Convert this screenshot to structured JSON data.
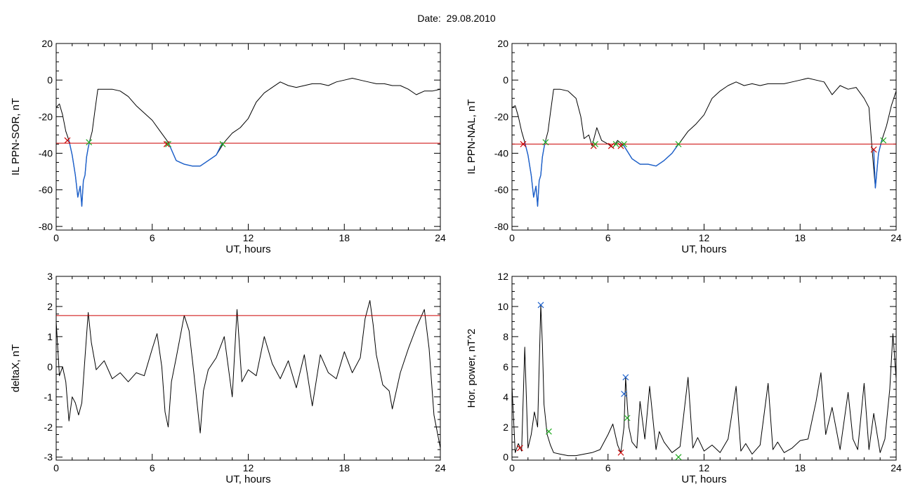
{
  "page": {
    "title": "Date:  29.08.2010"
  },
  "chart_data": [
    {
      "type": "line",
      "panel": "top-left",
      "xlabel": "UT, hours",
      "ylabel": "IL PPN-SOR, nT",
      "xlim": [
        0,
        24
      ],
      "ylim": [
        -82,
        20
      ],
      "xticks": [
        0,
        6,
        12,
        18,
        24
      ],
      "yticks": [
        -80,
        -60,
        -40,
        -20,
        0,
        20
      ],
      "threshold": {
        "value": -34.5,
        "color": "#cc0000"
      },
      "series": [
        {
          "color": "#000000",
          "x": [
            0,
            0.2,
            0.4,
            0.6,
            0.8,
            1.0,
            1.2,
            1.35,
            1.5,
            1.6,
            1.7,
            1.8,
            1.9,
            2.0,
            2.1,
            2.25,
            2.4,
            2.6,
            3.0,
            3.5,
            4.0,
            4.5,
            5.0,
            5.5,
            6.0,
            6.5,
            7.0,
            7.5,
            8.0,
            8.5,
            9.0,
            9.5,
            10.0,
            10.5,
            11.0,
            11.5,
            12.0,
            12.5,
            13.0,
            13.5,
            14.0,
            14.5,
            15.0,
            15.5,
            16.0,
            16.5,
            17.0,
            17.5,
            18.0,
            18.5,
            19.0,
            19.5,
            20.0,
            20.5,
            21.0,
            21.5,
            22.0,
            22.5,
            23.0,
            23.5,
            24.0
          ],
          "y": [
            -15,
            -13,
            -19,
            -28,
            -33,
            -41,
            -52,
            -64,
            -58,
            -69,
            -55,
            -52,
            -42,
            -37,
            -33,
            -28,
            -18,
            -5,
            -5,
            -5,
            -6,
            -9,
            -14,
            -18,
            -22,
            -28,
            -34,
            -44,
            -46,
            -47,
            -47,
            -44,
            -41,
            -34,
            -29,
            -26,
            -21,
            -12,
            -7,
            -4,
            -1,
            -3,
            -4,
            -3,
            -2,
            -2,
            -3,
            -1,
            0,
            1,
            0,
            -1,
            -2,
            -2,
            -3,
            -3,
            -5,
            -8,
            -6,
            -6,
            -5
          ]
        },
        {
          "color": "#1a5fcc",
          "x": [
            0.8,
            1.0,
            1.2,
            1.35,
            1.5,
            1.6,
            1.7,
            1.8,
            1.9,
            2.0,
            2.1
          ],
          "y": [
            -33,
            -41,
            -52,
            -64,
            -58,
            -69,
            -55,
            -52,
            -42,
            -37,
            -33
          ]
        },
        {
          "color": "#1a5fcc",
          "x": [
            7.0,
            7.5,
            8.0,
            8.5,
            9.0,
            9.5,
            10.0,
            10.4
          ],
          "y": [
            -34,
            -44,
            -46,
            -47,
            -47,
            -44,
            -41,
            -34
          ]
        }
      ],
      "markers": [
        {
          "x": 0.7,
          "y": -33,
          "color": "#cc0000"
        },
        {
          "x": 2.05,
          "y": -34,
          "color": "#22aa22"
        },
        {
          "x": 6.9,
          "y": -35,
          "color": "#cc0000"
        },
        {
          "x": 7.0,
          "y": -35,
          "color": "#22aa22"
        },
        {
          "x": 10.4,
          "y": -35,
          "color": "#22aa22"
        }
      ]
    },
    {
      "type": "line",
      "panel": "top-right",
      "xlabel": "UT, hours",
      "ylabel": "IL PPN-NAL, nT",
      "xlim": [
        0,
        24
      ],
      "ylim": [
        -82,
        20
      ],
      "xticks": [
        0,
        6,
        12,
        18,
        24
      ],
      "yticks": [
        -80,
        -60,
        -40,
        -20,
        0,
        20
      ],
      "threshold": {
        "value": -35,
        "color": "#cc0000"
      },
      "series": [
        {
          "color": "#000000",
          "x": [
            0,
            0.2,
            0.4,
            0.6,
            0.8,
            1.0,
            1.2,
            1.35,
            1.5,
            1.6,
            1.7,
            1.8,
            1.9,
            2.0,
            2.1,
            2.25,
            2.4,
            2.6,
            3.0,
            3.5,
            4.0,
            4.3,
            4.5,
            4.8,
            5.0,
            5.3,
            5.6,
            6.0,
            6.3,
            6.6,
            7.0,
            7.5,
            8.0,
            8.5,
            9.0,
            9.5,
            10.0,
            10.5,
            11.0,
            11.5,
            12.0,
            12.5,
            13.0,
            13.5,
            14.0,
            14.5,
            15.0,
            15.5,
            16.0,
            16.5,
            17.0,
            17.5,
            18.0,
            18.5,
            19.0,
            19.5,
            20.0,
            20.5,
            21.0,
            21.5,
            22.0,
            22.3,
            22.5,
            22.7,
            22.9,
            23.1,
            23.4,
            23.7,
            24.0
          ],
          "y": [
            -15,
            -14,
            -20,
            -28,
            -34,
            -41,
            -52,
            -64,
            -58,
            -69,
            -55,
            -52,
            -42,
            -37,
            -33,
            -28,
            -18,
            -5,
            -5,
            -6,
            -10,
            -20,
            -32,
            -30,
            -36,
            -26,
            -33,
            -35,
            -37,
            -33,
            -36,
            -43,
            -46,
            -46,
            -47,
            -44,
            -40,
            -34,
            -28,
            -24,
            -19,
            -10,
            -6,
            -3,
            -1,
            -3,
            -2,
            -3,
            -2,
            -2,
            -2,
            -1,
            0,
            1,
            0,
            -1,
            -8,
            -3,
            -5,
            -4,
            -10,
            -15,
            -38,
            -59,
            -40,
            -33,
            -25,
            -14,
            -6
          ]
        },
        {
          "color": "#1a5fcc",
          "x": [
            0.8,
            1.0,
            1.2,
            1.35,
            1.5,
            1.6,
            1.7,
            1.8,
            1.9,
            2.0,
            2.1
          ],
          "y": [
            -34,
            -41,
            -52,
            -64,
            -58,
            -69,
            -55,
            -52,
            -42,
            -37,
            -33
          ]
        },
        {
          "color": "#1a5fcc",
          "x": [
            6.8,
            7.0,
            7.5,
            8.0,
            8.5,
            9.0,
            9.5,
            10.0,
            10.4
          ],
          "y": [
            -35,
            -36,
            -43,
            -46,
            -46,
            -47,
            -44,
            -40,
            -35
          ]
        },
        {
          "color": "#1a5fcc",
          "x": [
            22.6,
            22.7,
            22.9,
            23.1
          ],
          "y": [
            -38,
            -59,
            -40,
            -33
          ]
        }
      ],
      "markers": [
        {
          "x": 0.7,
          "y": -35,
          "color": "#cc0000"
        },
        {
          "x": 2.1,
          "y": -34,
          "color": "#22aa22"
        },
        {
          "x": 5.1,
          "y": -36,
          "color": "#cc0000"
        },
        {
          "x": 5.2,
          "y": -35,
          "color": "#22aa22"
        },
        {
          "x": 6.2,
          "y": -36,
          "color": "#cc0000"
        },
        {
          "x": 6.5,
          "y": -35,
          "color": "#22aa22"
        },
        {
          "x": 6.8,
          "y": -36,
          "color": "#cc0000"
        },
        {
          "x": 7.0,
          "y": -35,
          "color": "#22aa22"
        },
        {
          "x": 10.4,
          "y": -35,
          "color": "#22aa22"
        },
        {
          "x": 22.6,
          "y": -38,
          "color": "#cc0000"
        },
        {
          "x": 23.2,
          "y": -33,
          "color": "#22aa22"
        }
      ]
    },
    {
      "type": "line",
      "panel": "bottom-left",
      "xlabel": "UT, hours",
      "ylabel": "deltaX, nT",
      "xlim": [
        0,
        24
      ],
      "ylim": [
        -3.1,
        3
      ],
      "xticks": [
        0,
        6,
        12,
        18,
        24
      ],
      "yticks": [
        -3,
        -2,
        -1,
        0,
        1,
        2,
        3
      ],
      "threshold": {
        "value": 1.7,
        "color": "#cc0000"
      },
      "series": [
        {
          "color": "#000000",
          "x": [
            0,
            0.2,
            0.4,
            0.6,
            0.8,
            1.0,
            1.2,
            1.4,
            1.6,
            1.8,
            2.0,
            2.2,
            2.5,
            3.0,
            3.5,
            4.0,
            4.5,
            5.0,
            5.5,
            6.0,
            6.3,
            6.6,
            6.8,
            7.0,
            7.2,
            7.5,
            8.0,
            8.3,
            8.6,
            9.0,
            9.2,
            9.5,
            10.0,
            10.5,
            11.0,
            11.3,
            11.6,
            12.0,
            12.5,
            13.0,
            13.5,
            14.0,
            14.5,
            15.0,
            15.5,
            16.0,
            16.5,
            17.0,
            17.5,
            18.0,
            18.5,
            19.0,
            19.3,
            19.6,
            19.8,
            20.0,
            20.4,
            20.8,
            21.0,
            21.5,
            22.0,
            22.5,
            23.0,
            23.3,
            23.6,
            24.0
          ],
          "y": [
            1.5,
            -0.3,
            0.0,
            -0.5,
            -1.8,
            -1.0,
            -1.2,
            -1.6,
            -1.2,
            0.3,
            1.8,
            0.8,
            -0.1,
            0.2,
            -0.4,
            -0.2,
            -0.5,
            -0.2,
            -0.3,
            0.6,
            1.1,
            0.0,
            -1.5,
            -2.0,
            -0.5,
            0.3,
            1.7,
            1.2,
            -0.2,
            -2.2,
            -0.8,
            -0.1,
            0.3,
            1.0,
            -1.0,
            1.9,
            -0.5,
            -0.1,
            -0.3,
            1.0,
            0.1,
            -0.4,
            0.2,
            -0.7,
            0.4,
            -1.3,
            0.4,
            -0.2,
            -0.4,
            0.5,
            -0.2,
            0.3,
            1.6,
            2.2,
            1.4,
            0.4,
            -0.6,
            -0.8,
            -1.4,
            -0.2,
            0.6,
            1.3,
            1.9,
            0.6,
            -1.6,
            -2.7
          ]
        }
      ],
      "markers": []
    },
    {
      "type": "line",
      "panel": "bottom-right",
      "xlabel": "UT, hours",
      "ylabel": "Hor. power, nT^2",
      "xlim": [
        0,
        24
      ],
      "ylim": [
        -0.2,
        12
      ],
      "xticks": [
        0,
        6,
        12,
        18,
        24
      ],
      "yticks": [
        0,
        2,
        4,
        6,
        8,
        10,
        12
      ],
      "threshold": null,
      "series": [
        {
          "color": "#000000",
          "x": [
            0,
            0.2,
            0.4,
            0.6,
            0.8,
            1.0,
            1.2,
            1.4,
            1.6,
            1.8,
            1.9,
            2.0,
            2.2,
            2.4,
            2.6,
            3.0,
            3.5,
            4.0,
            4.5,
            5.0,
            5.5,
            6.0,
            6.3,
            6.6,
            6.8,
            7.0,
            7.1,
            7.2,
            7.3,
            7.5,
            7.8,
            8.0,
            8.3,
            8.6,
            9.0,
            9.2,
            9.5,
            10.0,
            10.5,
            11.0,
            11.3,
            11.6,
            12.0,
            12.5,
            13.0,
            13.5,
            14.0,
            14.3,
            14.6,
            15.0,
            15.5,
            16.0,
            16.3,
            16.6,
            17.0,
            17.5,
            18.0,
            18.5,
            19.0,
            19.3,
            19.6,
            20.0,
            20.5,
            21.0,
            21.3,
            21.6,
            22.0,
            22.3,
            22.6,
            23.0,
            23.3,
            23.6,
            23.8,
            24.0
          ],
          "y": [
            4.7,
            0.3,
            0.9,
            0.4,
            7.3,
            0.6,
            1.5,
            3.0,
            2.0,
            10.1,
            7.5,
            3.5,
            1.5,
            0.8,
            0.3,
            0.2,
            0.1,
            0.1,
            0.2,
            0.3,
            0.5,
            1.5,
            2.2,
            0.8,
            0.3,
            2.0,
            5.3,
            3.5,
            2.0,
            1.0,
            0.6,
            3.7,
            1.2,
            4.7,
            0.5,
            1.7,
            1.0,
            0.3,
            0.7,
            5.3,
            0.6,
            1.3,
            0.4,
            0.8,
            0.3,
            1.2,
            4.7,
            0.4,
            0.9,
            0.2,
            0.8,
            4.9,
            0.5,
            1.0,
            0.3,
            0.6,
            1.1,
            1.2,
            3.7,
            5.6,
            1.5,
            3.3,
            0.5,
            4.3,
            1.2,
            0.5,
            4.9,
            0.5,
            2.9,
            0.3,
            1.2,
            4.5,
            8.2,
            5.2
          ]
        }
      ],
      "markers": [
        {
          "x": 0.5,
          "y": 0.6,
          "color": "#cc0000"
        },
        {
          "x": 1.8,
          "y": 10.1,
          "color": "#1a5fcc"
        },
        {
          "x": 2.3,
          "y": 1.7,
          "color": "#22aa22"
        },
        {
          "x": 6.8,
          "y": 0.3,
          "color": "#cc0000"
        },
        {
          "x": 7.0,
          "y": 4.2,
          "color": "#1a5fcc"
        },
        {
          "x": 7.1,
          "y": 5.3,
          "color": "#1a5fcc"
        },
        {
          "x": 7.2,
          "y": 2.6,
          "color": "#22aa22"
        },
        {
          "x": 10.4,
          "y": 0.0,
          "color": "#22aa22"
        }
      ]
    }
  ]
}
